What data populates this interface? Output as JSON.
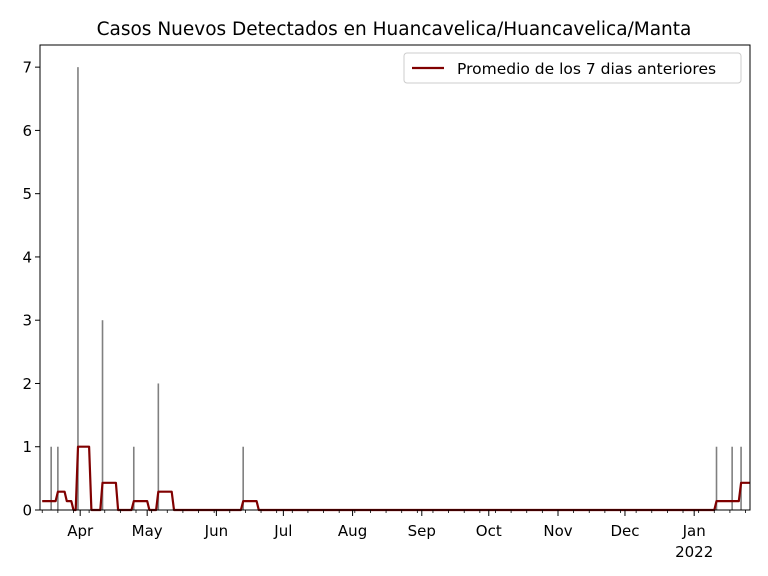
{
  "chart_data": {
    "type": "bar",
    "title": "Casos Nuevos Detectados en Huancavelica/Huancavelica/Manta",
    "xlabel": "",
    "ylabel": "",
    "ylim": [
      0,
      7.35
    ],
    "yticks": [
      0,
      1,
      2,
      3,
      4,
      5,
      6,
      7
    ],
    "xlim": [
      "2021-03-14",
      "2022-01-26"
    ],
    "xticks": [
      {
        "date": "2021-04-01",
        "label": "Apr"
      },
      {
        "date": "2021-05-01",
        "label": "May"
      },
      {
        "date": "2021-06-01",
        "label": "Jun"
      },
      {
        "date": "2021-07-01",
        "label": "Jul"
      },
      {
        "date": "2021-08-01",
        "label": "Aug"
      },
      {
        "date": "2021-09-01",
        "label": "Sep"
      },
      {
        "date": "2021-10-01",
        "label": "Oct"
      },
      {
        "date": "2021-11-01",
        "label": "Nov"
      },
      {
        "date": "2021-12-01",
        "label": "Dec"
      },
      {
        "date": "2022-01-01",
        "label": "Jan",
        "sublabel": "2022"
      }
    ],
    "grid": false,
    "legend_position": "top-right",
    "bars": {
      "color": "#808080",
      "points": [
        {
          "date": "2021-03-19",
          "value": 1
        },
        {
          "date": "2021-03-22",
          "value": 1
        },
        {
          "date": "2021-03-31",
          "value": 7
        },
        {
          "date": "2021-04-11",
          "value": 3
        },
        {
          "date": "2021-04-25",
          "value": 1
        },
        {
          "date": "2021-05-06",
          "value": 2
        },
        {
          "date": "2021-06-13",
          "value": 1
        },
        {
          "date": "2022-01-11",
          "value": 1
        },
        {
          "date": "2022-01-18",
          "value": 1
        },
        {
          "date": "2022-01-22",
          "value": 1
        }
      ]
    },
    "series": [
      {
        "name": "Promedio de los 7 dias anteriores",
        "color": "#800000",
        "points": [
          {
            "date": "2021-03-19",
            "value": 0.14
          },
          {
            "date": "2021-03-22",
            "value": 0.29
          },
          {
            "date": "2021-03-26",
            "value": 0.14
          },
          {
            "date": "2021-03-29",
            "value": 0.0
          },
          {
            "date": "2021-03-31",
            "value": 1.0
          },
          {
            "date": "2021-04-06",
            "value": 0.0
          },
          {
            "date": "2021-04-11",
            "value": 0.43
          },
          {
            "date": "2021-04-18",
            "value": 0.0
          },
          {
            "date": "2021-04-25",
            "value": 0.14
          },
          {
            "date": "2021-05-02",
            "value": 0.0
          },
          {
            "date": "2021-05-06",
            "value": 0.29
          },
          {
            "date": "2021-05-13",
            "value": 0.0
          },
          {
            "date": "2021-06-13",
            "value": 0.14
          },
          {
            "date": "2021-06-20",
            "value": 0.0
          },
          {
            "date": "2022-01-11",
            "value": 0.14
          },
          {
            "date": "2022-01-22",
            "value": 0.43
          }
        ]
      }
    ]
  }
}
